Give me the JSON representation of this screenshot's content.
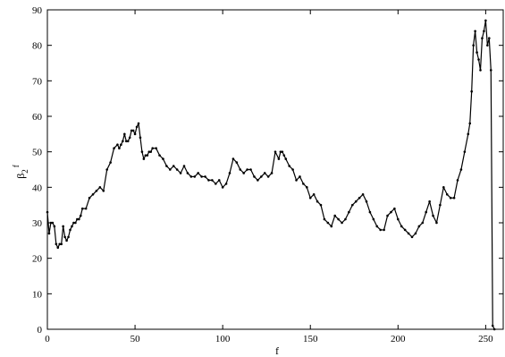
{
  "chart_data": {
    "type": "line",
    "title": "",
    "xlabel": "f",
    "ylabel": "β",
    "ylabel_subscript": "2",
    "ylabel_superscript": "f",
    "xlim": [
      0,
      260
    ],
    "ylim": [
      0,
      90
    ],
    "x_ticks": [
      0,
      50,
      100,
      150,
      200,
      250
    ],
    "y_ticks": [
      0,
      10,
      20,
      30,
      40,
      50,
      60,
      70,
      80,
      90
    ],
    "grid": false,
    "legend": "none",
    "series": [
      {
        "color": "#000000",
        "x": [
          0,
          1,
          2,
          3,
          4,
          5,
          6,
          7,
          8,
          9,
          10,
          11,
          12,
          13,
          14,
          15,
          16,
          17,
          18,
          19,
          20,
          22,
          24,
          26,
          28,
          30,
          32,
          34,
          36,
          38,
          40,
          41,
          42,
          43,
          44,
          45,
          46,
          47,
          48,
          49,
          50,
          51,
          52,
          53,
          54,
          55,
          56,
          57,
          58,
          59,
          60,
          62,
          64,
          66,
          68,
          70,
          72,
          74,
          76,
          78,
          80,
          82,
          84,
          86,
          88,
          90,
          92,
          94,
          96,
          98,
          100,
          102,
          104,
          106,
          108,
          110,
          112,
          114,
          116,
          118,
          120,
          122,
          124,
          126,
          128,
          130,
          132,
          133,
          134,
          135,
          136,
          138,
          140,
          142,
          144,
          146,
          148,
          150,
          152,
          154,
          156,
          158,
          160,
          162,
          164,
          166,
          168,
          170,
          172,
          174,
          176,
          178,
          180,
          182,
          184,
          186,
          188,
          190,
          192,
          194,
          196,
          198,
          200,
          202,
          204,
          206,
          208,
          210,
          212,
          214,
          216,
          218,
          220,
          222,
          224,
          226,
          228,
          230,
          232,
          234,
          236,
          238,
          240,
          241,
          242,
          243,
          244,
          245,
          246,
          247,
          248,
          249,
          250,
          251,
          252,
          253,
          254,
          255
        ],
        "values": [
          33,
          27,
          30,
          30,
          29,
          24,
          23,
          24,
          24,
          29,
          26,
          25,
          26,
          28,
          29,
          30,
          30,
          31,
          31,
          32,
          34,
          34,
          37,
          38,
          39,
          40,
          39,
          45,
          47,
          51,
          52,
          51,
          52,
          53,
          55,
          53,
          53,
          54,
          56,
          56,
          55,
          57,
          58,
          54,
          50,
          48,
          49,
          49,
          50,
          50,
          51,
          51,
          49,
          48,
          46,
          45,
          46,
          45,
          44,
          46,
          44,
          43,
          43,
          44,
          43,
          43,
          42,
          42,
          41,
          42,
          40,
          41,
          44,
          48,
          47,
          45,
          44,
          45,
          45,
          43,
          42,
          43,
          44,
          43,
          44,
          50,
          48,
          50,
          50,
          49,
          48,
          46,
          45,
          42,
          43,
          41,
          40,
          37,
          38,
          36,
          35,
          31,
          30,
          29,
          32,
          31,
          30,
          31,
          33,
          35,
          36,
          37,
          38,
          36,
          33,
          31,
          29,
          28,
          28,
          32,
          33,
          34,
          31,
          29,
          28,
          27,
          26,
          27,
          29,
          30,
          33,
          36,
          32,
          30,
          35,
          40,
          38,
          37,
          37,
          42,
          45,
          50,
          55,
          58,
          67,
          80,
          84,
          78,
          76,
          73,
          82,
          84,
          87,
          80,
          82,
          73,
          1,
          0
        ]
      }
    ]
  }
}
